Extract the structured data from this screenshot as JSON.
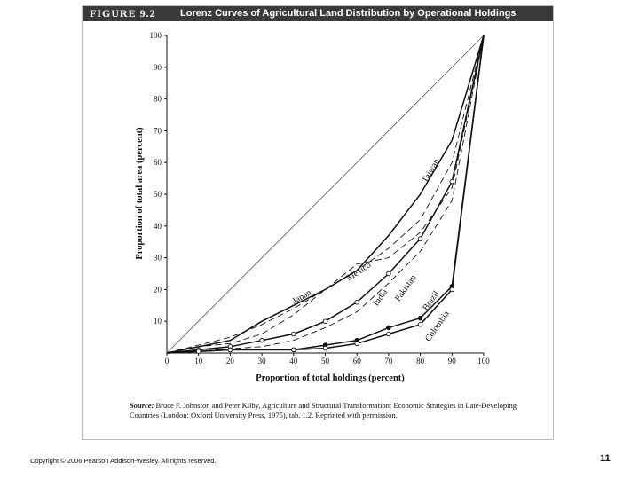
{
  "figure": {
    "label": "FIGURE 9.2",
    "title": "Lorenz Curves of Agricultural Land Distribution by Operational Holdings"
  },
  "chart_data": {
    "type": "line",
    "xlabel": "Proportion of total holdings (percent)",
    "ylabel": "Proportion of total area (percent)",
    "xlim": [
      0,
      100
    ],
    "ylim": [
      0,
      100
    ],
    "x_ticks": [
      0,
      10,
      20,
      30,
      40,
      50,
      60,
      70,
      80,
      90,
      100
    ],
    "y_ticks": [
      10,
      20,
      30,
      40,
      50,
      60,
      70,
      80,
      90,
      100
    ],
    "grid": false,
    "equality_line": [
      [
        0,
        0
      ],
      [
        100,
        100
      ]
    ],
    "series": [
      {
        "name": "Taiwan",
        "style": "dashed",
        "marker": "none",
        "points": [
          [
            0,
            0
          ],
          [
            20,
            5
          ],
          [
            30,
            9
          ],
          [
            40,
            14
          ],
          [
            50,
            20
          ],
          [
            60,
            26
          ],
          [
            70,
            33
          ],
          [
            80,
            42
          ],
          [
            90,
            60
          ],
          [
            100,
            100
          ]
        ],
        "label_at": [
          84,
          57
        ],
        "label_angle": -60
      },
      {
        "name": "Japan",
        "style": "solid",
        "marker": "none",
        "points": [
          [
            0,
            0
          ],
          [
            20,
            4
          ],
          [
            30,
            10
          ],
          [
            40,
            15
          ],
          [
            50,
            20
          ],
          [
            60,
            26
          ],
          [
            70,
            37
          ],
          [
            80,
            50
          ],
          [
            90,
            67
          ],
          [
            100,
            100
          ]
        ],
        "label_at": [
          43,
          17
        ],
        "label_angle": -30
      },
      {
        "name": "Mexico",
        "style": "dashed",
        "marker": "none",
        "points": [
          [
            0,
            0
          ],
          [
            10,
            2
          ],
          [
            20,
            3
          ],
          [
            30,
            6
          ],
          [
            40,
            12
          ],
          [
            50,
            20
          ],
          [
            60,
            28
          ],
          [
            70,
            30
          ],
          [
            80,
            38
          ],
          [
            90,
            52
          ],
          [
            100,
            100
          ]
        ],
        "label_at": [
          61,
          25
        ],
        "label_angle": -33
      },
      {
        "name": "India",
        "style": "solid",
        "marker": "open",
        "points": [
          [
            0,
            0
          ],
          [
            10,
            1
          ],
          [
            20,
            2
          ],
          [
            30,
            4
          ],
          [
            40,
            6
          ],
          [
            50,
            10
          ],
          [
            60,
            16
          ],
          [
            70,
            25
          ],
          [
            80,
            36
          ],
          [
            90,
            54
          ],
          [
            100,
            100
          ]
        ],
        "label_at": [
          68,
          17
        ],
        "label_angle": -55
      },
      {
        "name": "Pakistan",
        "style": "dashed",
        "marker": "none",
        "points": [
          [
            0,
            0
          ],
          [
            30,
            2
          ],
          [
            40,
            4
          ],
          [
            50,
            8
          ],
          [
            60,
            13
          ],
          [
            70,
            22
          ],
          [
            80,
            32
          ],
          [
            90,
            48
          ],
          [
            100,
            100
          ]
        ],
        "label_at": [
          76,
          20
        ],
        "label_angle": -55
      },
      {
        "name": "Brazil",
        "style": "solid",
        "marker": "filled",
        "points": [
          [
            0,
            0
          ],
          [
            20,
            1
          ],
          [
            40,
            1
          ],
          [
            50,
            2.5
          ],
          [
            60,
            4
          ],
          [
            70,
            8
          ],
          [
            80,
            11
          ],
          [
            90,
            21
          ],
          [
            100,
            100
          ]
        ],
        "label_at": [
          84,
          16
        ],
        "label_angle": -55
      },
      {
        "name": "Colombia",
        "style": "solid",
        "marker": "open",
        "points": [
          [
            0,
            0
          ],
          [
            10,
            0.5
          ],
          [
            20,
            1
          ],
          [
            40,
            1
          ],
          [
            50,
            1.5
          ],
          [
            60,
            3
          ],
          [
            70,
            6
          ],
          [
            80,
            9
          ],
          [
            90,
            20
          ],
          [
            100,
            100
          ]
        ],
        "label_at": [
          86,
          8
        ],
        "label_angle": -55
      }
    ]
  },
  "source": {
    "label": "Source:",
    "text": "Bruce F. Johnston and Peter Kilby, Agriculture and Structural Transformation: Economic Strategies in Late-Developing Countries (London: Oxford University Press, 1975), tab. 1.2. Reprinted with permission."
  },
  "footer": {
    "copyright": "Copyright © 2006 Pearson Addison-Wesley. All rights reserved.",
    "slide_number": "11"
  },
  "colors": {
    "header_bg": "#3a3a3a",
    "line": "#111111",
    "equality_line": "#555555"
  }
}
